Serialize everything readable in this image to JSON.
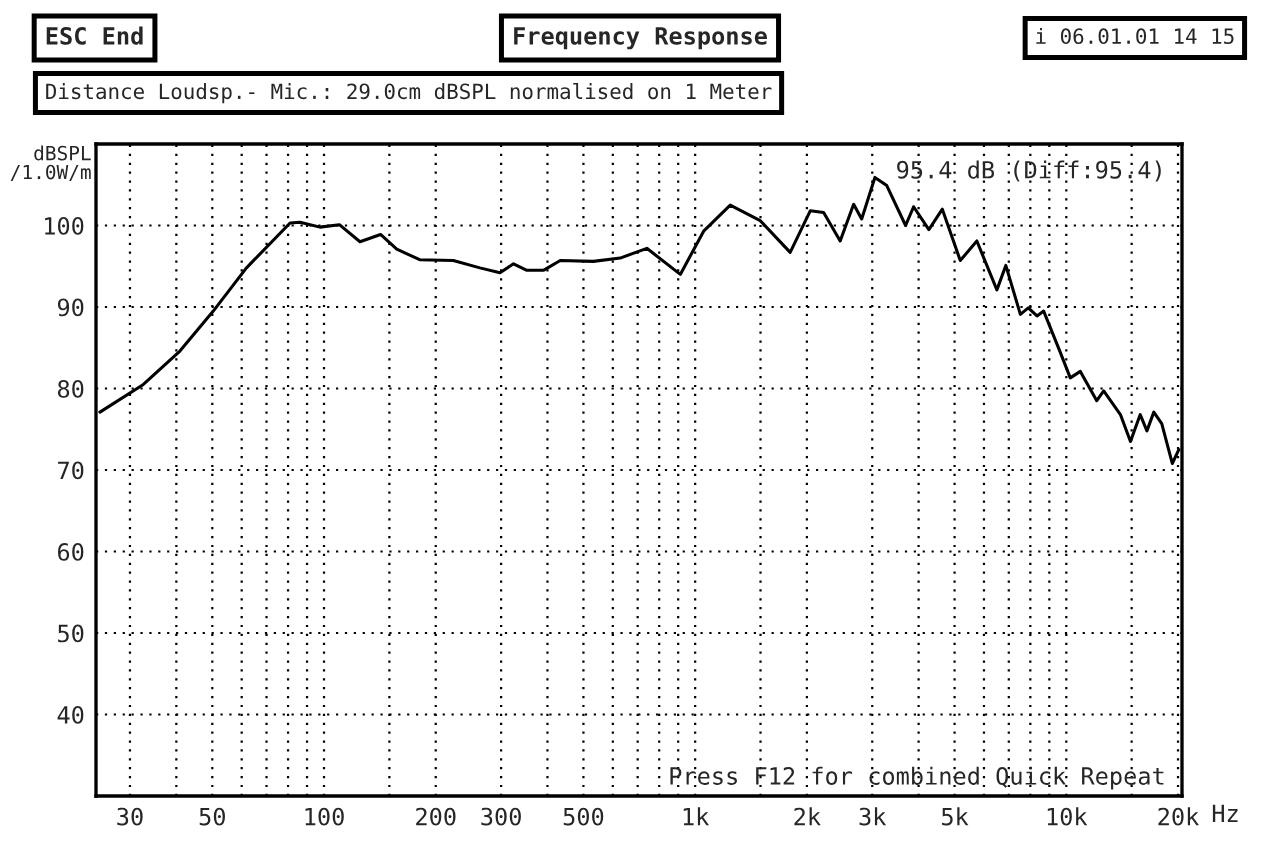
{
  "chart_data": {
    "type": "line",
    "title": "Frequency Response",
    "ylabel": "dBSPL\n/1.0W/m",
    "annotations": [
      "ESC End",
      "i 06.01.01 14 15",
      "Distance Loudsp.- Mic.: 29.0cm dBSPL normalised on 1 Meter",
      "95.4 dB (Diff:95.4)",
      "Press F12 for combined Quick Repeat"
    ],
    "x": [
      24.9,
      32.6,
      40.9,
      50.3,
      61.8,
      81,
      86.2,
      97.5,
      110,
      125,
      142,
      157,
      181,
      223,
      263,
      298,
      324,
      352,
      390,
      433,
      532,
      628,
      741,
      912,
      1054,
      1243,
      1497,
      1803,
      2042,
      2219,
      2459,
      2673,
      2810,
      3050,
      3283,
      3690,
      3878,
      4263,
      4634,
      5180,
      5741,
      6501,
      6871,
      7520,
      7900,
      8337,
      8690,
      9640,
      10250,
      10910,
      12080,
      12610,
      13990,
      14890,
      15820,
      16490,
      17210,
      18080,
      19300,
      20100
    ],
    "series": [
      {
        "color": "#000000",
        "values": [
          77.1,
          80.5,
          84.6,
          89.5,
          94.8,
          100.3,
          100.4,
          99.8,
          100.1,
          98.0,
          98.9,
          97.1,
          95.8,
          95.7,
          94.8,
          94.2,
          95.3,
          94.5,
          94.5,
          95.7,
          95.6,
          96.0,
          97.2,
          94.0,
          99.3,
          102.5,
          100.6,
          96.7,
          101.8,
          101.6,
          98.1,
          102.6,
          100.8,
          105.9,
          104.9,
          100.0,
          102.3,
          99.5,
          102.0,
          95.7,
          98.1,
          92.1,
          95.1,
          89.1,
          89.9,
          88.9,
          89.5,
          84.4,
          81.3,
          82.1,
          78.5,
          79.7,
          76.8,
          73.5,
          76.8,
          74.8,
          77.1,
          75.7,
          70.8,
          72.5
        ]
      }
    ],
    "log": "x",
    "xlim": [
      24.3,
      20500
    ],
    "ylim": [
      30,
      110
    ],
    "xticks": [
      30,
      {
        "value": 40,
        "label": null
      },
      50,
      {
        "value": 60,
        "label": null
      },
      {
        "value": 70,
        "label": null
      },
      {
        "value": 80,
        "label": null
      },
      {
        "value": 90,
        "label": null
      },
      100,
      {
        "value": 150,
        "label": null
      },
      200,
      300,
      {
        "value": 400,
        "label": null
      },
      500,
      {
        "value": 600,
        "label": null
      },
      {
        "value": 700,
        "label": null
      },
      {
        "value": 800,
        "label": null
      },
      {
        "value": 900,
        "label": null
      },
      {
        "value": 1000,
        "label": "1k"
      },
      {
        "value": 1500,
        "label": null
      },
      {
        "value": 2000,
        "label": "2k"
      },
      {
        "value": 3000,
        "label": "3k"
      },
      {
        "value": 4000,
        "label": null
      },
      {
        "value": 5000,
        "label": "5k"
      },
      {
        "value": 6000,
        "label": null
      },
      {
        "value": 7000,
        "label": null
      },
      {
        "value": 8000,
        "label": null
      },
      {
        "value": 9000,
        "label": null
      },
      {
        "value": 10000,
        "label": "10k"
      },
      {
        "value": 15000,
        "label": null
      },
      {
        "value": 20000,
        "label": "20k"
      }
    ],
    "xlabel": "Hz",
    "yticks": [
      40,
      50,
      60,
      70,
      80,
      90,
      100
    ],
    "grid": true,
    "line_style": "solid",
    "marker": "none",
    "legend": false
  }
}
